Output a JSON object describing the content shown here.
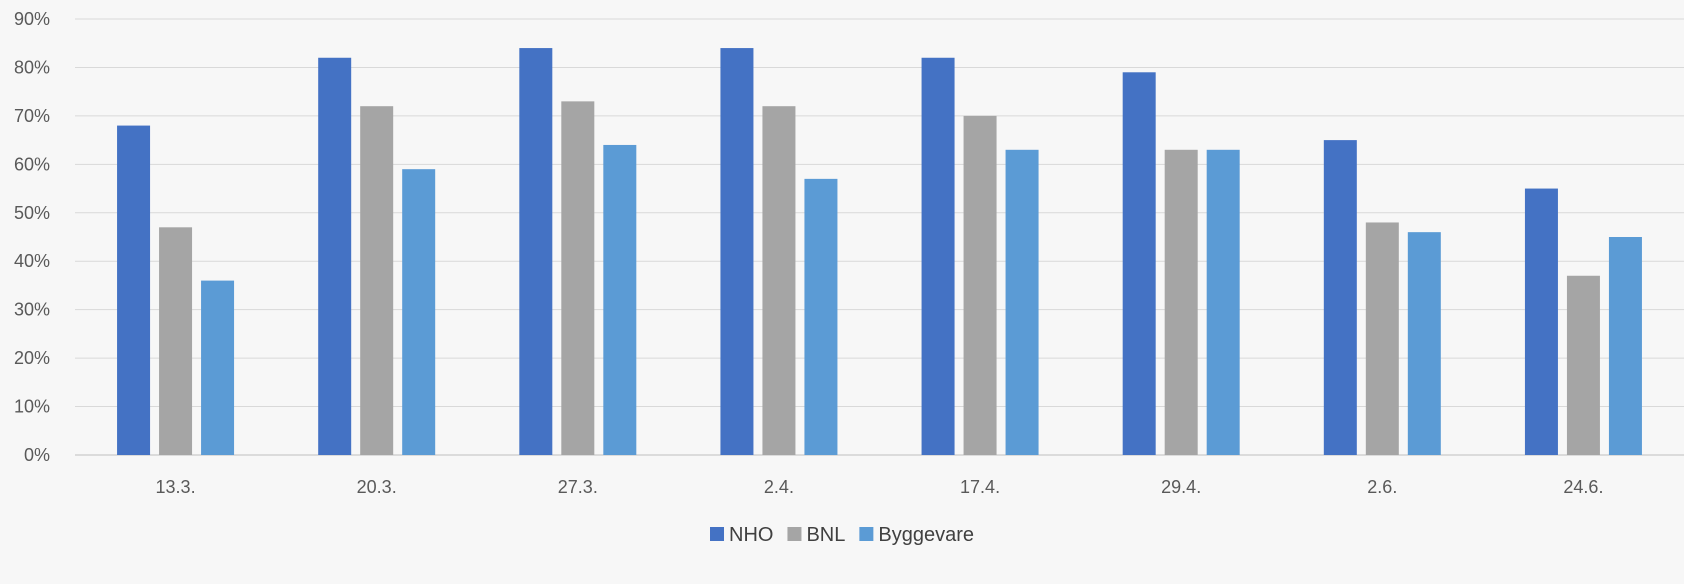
{
  "chart_data": {
    "type": "bar",
    "categories": [
      "13.3.",
      "20.3.",
      "27.3.",
      "2.4.",
      "17.4.",
      "29.4.",
      "2.6.",
      "24.6."
    ],
    "series": [
      {
        "name": "NHO",
        "color": "#4472c4",
        "values": [
          68,
          82,
          84,
          84,
          82,
          79,
          65,
          55
        ]
      },
      {
        "name": "BNL",
        "color": "#a5a5a5",
        "values": [
          47,
          72,
          73,
          72,
          70,
          63,
          48,
          37
        ]
      },
      {
        "name": "Byggevare",
        "color": "#5b9bd5",
        "values": [
          36,
          59,
          64,
          57,
          63,
          63,
          46,
          45
        ]
      }
    ],
    "ylim": [
      0,
      90
    ],
    "yticks": [
      0,
      10,
      20,
      30,
      40,
      50,
      60,
      70,
      80,
      90
    ],
    "ytick_labels": [
      "0%",
      "10%",
      "20%",
      "30%",
      "40%",
      "50%",
      "60%",
      "70%",
      "80%",
      "90%"
    ],
    "grid": true,
    "legend_position": "bottom-center",
    "title": "",
    "xlabel": "",
    "ylabel": ""
  }
}
